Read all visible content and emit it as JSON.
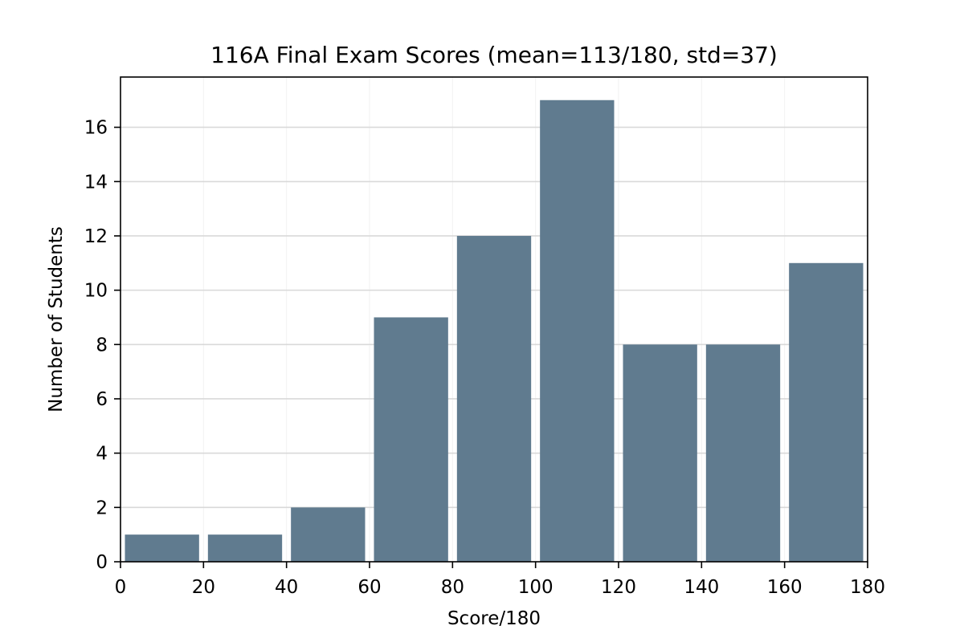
{
  "chart_data": {
    "type": "bar",
    "title": "116A Final Exam Scores (mean=113/180, std=37)",
    "xlabel": "Score/180",
    "ylabel": "Number of Students",
    "bins": [
      {
        "start": 0,
        "end": 20,
        "count": 1
      },
      {
        "start": 20,
        "end": 40,
        "count": 1
      },
      {
        "start": 40,
        "end": 60,
        "count": 2
      },
      {
        "start": 60,
        "end": 80,
        "count": 9
      },
      {
        "start": 80,
        "end": 100,
        "count": 12
      },
      {
        "start": 100,
        "end": 120,
        "count": 17
      },
      {
        "start": 120,
        "end": 140,
        "count": 8
      },
      {
        "start": 140,
        "end": 160,
        "count": 8
      },
      {
        "start": 160,
        "end": 180,
        "count": 11
      }
    ],
    "xlim": [
      0,
      180
    ],
    "ylim": [
      0,
      17.85
    ],
    "xticks": [
      0,
      20,
      40,
      60,
      80,
      100,
      120,
      140,
      160,
      180
    ],
    "yticks": [
      0,
      2,
      4,
      6,
      8,
      10,
      12,
      14,
      16
    ],
    "grid": true,
    "bar_color": "#607b8f",
    "grid_color": "#d9d9d9"
  }
}
